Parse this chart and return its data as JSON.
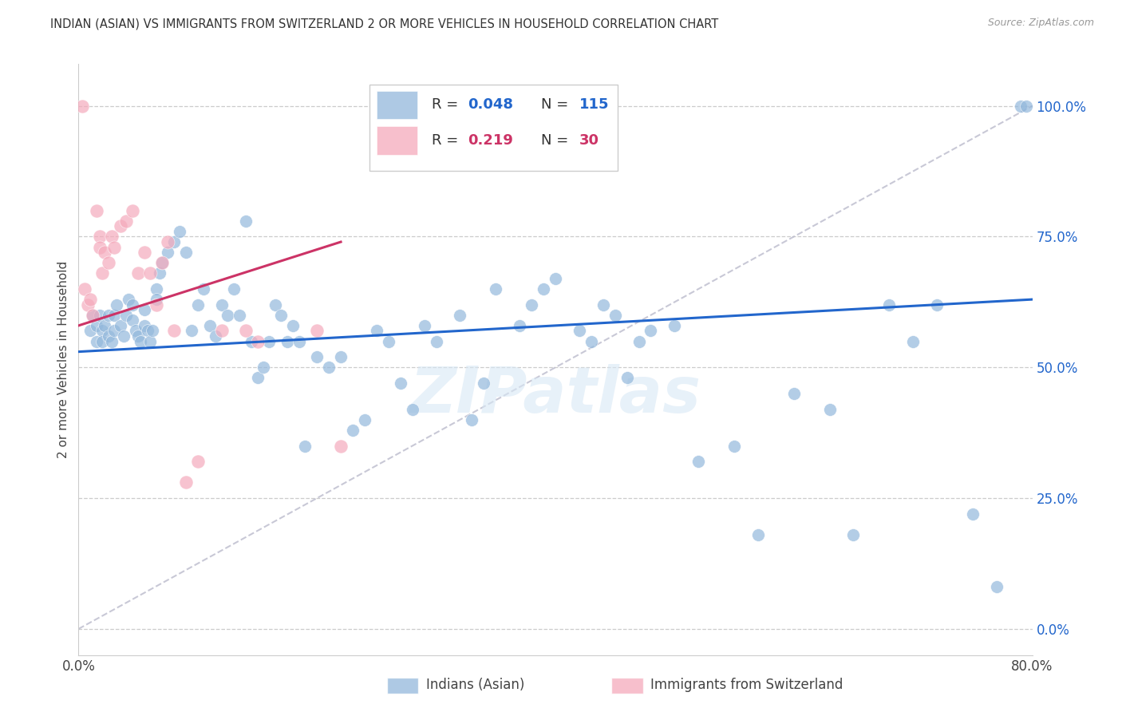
{
  "title": "INDIAN (ASIAN) VS IMMIGRANTS FROM SWITZERLAND 2 OR MORE VEHICLES IN HOUSEHOLD CORRELATION CHART",
  "source": "Source: ZipAtlas.com",
  "ylabel": "2 or more Vehicles in Household",
  "ytick_vals": [
    0,
    25,
    50,
    75,
    100
  ],
  "xlim": [
    0,
    80
  ],
  "ylim": [
    -5,
    108
  ],
  "legend_blue_label": "Indians (Asian)",
  "legend_pink_label": "Immigrants from Switzerland",
  "legend_blue_R": "R = ",
  "legend_blue_R_val": "0.048",
  "legend_blue_N_label": "N = ",
  "legend_blue_N_val": "115",
  "legend_pink_R": "R = ",
  "legend_pink_R_val": "0.219",
  "legend_pink_N_label": "N = ",
  "legend_pink_N_val": "30",
  "blue_color": "#93B8DC",
  "pink_color": "#F5AABC",
  "trend_blue_color": "#2266CC",
  "trend_pink_color": "#CC3366",
  "ref_line_color": "#BBBBCC",
  "watermark": "ZIPatlas",
  "blue_scatter_x": [
    1.0,
    1.2,
    1.5,
    1.5,
    1.8,
    2.0,
    2.0,
    2.2,
    2.5,
    2.5,
    2.8,
    3.0,
    3.0,
    3.2,
    3.5,
    3.8,
    4.0,
    4.2,
    4.5,
    4.5,
    4.8,
    5.0,
    5.2,
    5.5,
    5.5,
    5.8,
    6.0,
    6.2,
    6.5,
    6.5,
    6.8,
    7.0,
    7.5,
    8.0,
    8.5,
    9.0,
    9.5,
    10.0,
    10.5,
    11.0,
    11.5,
    12.0,
    12.5,
    13.0,
    13.5,
    14.0,
    14.5,
    15.0,
    15.5,
    16.0,
    16.5,
    17.0,
    17.5,
    18.0,
    18.5,
    19.0,
    20.0,
    21.0,
    22.0,
    23.0,
    24.0,
    25.0,
    26.0,
    27.0,
    28.0,
    29.0,
    30.0,
    32.0,
    33.0,
    34.0,
    35.0,
    37.0,
    38.0,
    39.0,
    40.0,
    42.0,
    43.0,
    44.0,
    45.0,
    46.0,
    47.0,
    48.0,
    50.0,
    52.0,
    55.0,
    57.0,
    60.0,
    63.0,
    65.0,
    68.0,
    70.0,
    72.0,
    75.0,
    77.0,
    79.0,
    79.5
  ],
  "blue_scatter_y": [
    57,
    60,
    58,
    55,
    60,
    57,
    55,
    58,
    56,
    60,
    55,
    57,
    60,
    62,
    58,
    56,
    60,
    63,
    59,
    62,
    57,
    56,
    55,
    61,
    58,
    57,
    55,
    57,
    65,
    63,
    68,
    70,
    72,
    74,
    76,
    72,
    57,
    62,
    65,
    58,
    56,
    62,
    60,
    65,
    60,
    78,
    55,
    48,
    50,
    55,
    62,
    60,
    55,
    58,
    55,
    35,
    52,
    50,
    52,
    38,
    40,
    57,
    55,
    47,
    42,
    58,
    55,
    60,
    40,
    47,
    65,
    58,
    62,
    65,
    67,
    57,
    55,
    62,
    60,
    48,
    55,
    57,
    58,
    32,
    35,
    18,
    45,
    42,
    18,
    62,
    55,
    62,
    22,
    8,
    100,
    100
  ],
  "pink_scatter_x": [
    0.3,
    0.5,
    0.8,
    1.0,
    1.2,
    1.5,
    1.8,
    1.8,
    2.0,
    2.2,
    2.5,
    2.8,
    3.0,
    3.5,
    4.0,
    4.5,
    5.0,
    5.5,
    6.0,
    6.5,
    7.0,
    7.5,
    8.0,
    9.0,
    10.0,
    12.0,
    14.0,
    15.0,
    20.0,
    22.0
  ],
  "pink_scatter_y": [
    100,
    65,
    62,
    63,
    60,
    80,
    75,
    73,
    68,
    72,
    70,
    75,
    73,
    77,
    78,
    80,
    68,
    72,
    68,
    62,
    70,
    74,
    57,
    28,
    32,
    57,
    57,
    55,
    57,
    35
  ],
  "blue_trend_x": [
    0,
    80
  ],
  "blue_trend_y": [
    53,
    63
  ],
  "pink_trend_x": [
    0,
    22
  ],
  "pink_trend_y": [
    58,
    74
  ],
  "ref_line_x": [
    0,
    80
  ],
  "ref_line_y": [
    0,
    100
  ]
}
